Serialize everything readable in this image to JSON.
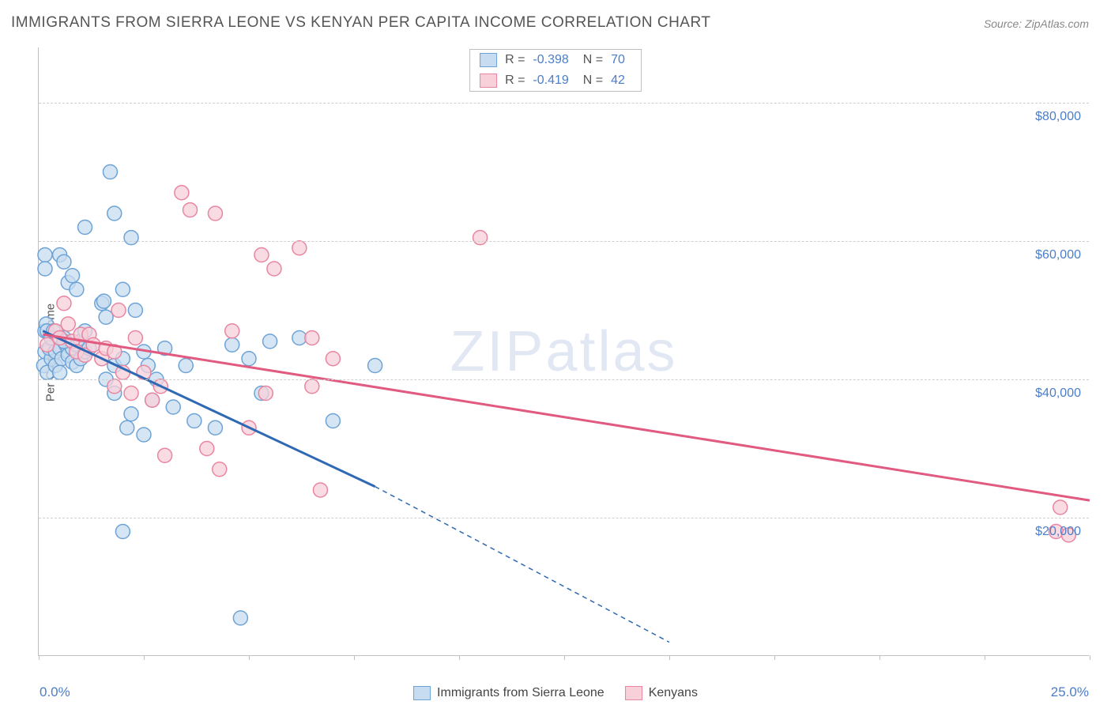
{
  "title": "IMMIGRANTS FROM SIERRA LEONE VS KENYAN PER CAPITA INCOME CORRELATION CHART",
  "source": "Source: ZipAtlas.com",
  "watermark": "ZIPatlas",
  "chart": {
    "type": "scatter",
    "xlim": [
      0,
      25
    ],
    "ylim": [
      0,
      88000
    ],
    "x_min_label": "0.0%",
    "x_max_label": "25.0%",
    "ylabel": "Per Capita Income",
    "ytick_values": [
      20000,
      40000,
      60000,
      80000
    ],
    "ytick_labels": [
      "$20,000",
      "$40,000",
      "$60,000",
      "$80,000"
    ],
    "xtick_values": [
      0,
      2.5,
      5,
      7.5,
      10,
      12.5,
      15,
      17.5,
      20,
      22.5,
      25
    ],
    "grid_color": "#cfcfcf",
    "axis_color": "#c0c0c0",
    "label_color": "#4a7ec9",
    "marker_radius": 9,
    "marker_stroke_width": 1.5,
    "trend_width": 3,
    "dash_pattern": "6,5",
    "series": [
      {
        "name": "Immigrants from Sierra Leone",
        "fill": "#c7dcf0",
        "stroke": "#6da3d6",
        "line_color": "#2f69b3",
        "R": "-0.398",
        "N": "70",
        "trend": {
          "x1": 0.1,
          "y1": 47000,
          "x2": 8.0,
          "y2": 24500,
          "ext_x2": 15.0,
          "ext_y2": 2000
        },
        "points": [
          [
            0.15,
            58000
          ],
          [
            0.15,
            56000
          ],
          [
            0.15,
            47000
          ],
          [
            0.15,
            44000
          ],
          [
            0.12,
            42000
          ],
          [
            0.18,
            48000
          ],
          [
            0.2,
            41000
          ],
          [
            0.3,
            43000
          ],
          [
            0.2,
            47000
          ],
          [
            0.25,
            44500
          ],
          [
            0.3,
            46000
          ],
          [
            0.35,
            47000
          ],
          [
            0.4,
            44000
          ],
          [
            0.4,
            42000
          ],
          [
            0.5,
            44500
          ],
          [
            0.55,
            43000
          ],
          [
            0.5,
            41000
          ],
          [
            0.6,
            46000
          ],
          [
            0.65,
            45000
          ],
          [
            0.7,
            44000
          ],
          [
            0.7,
            43500
          ],
          [
            0.8,
            44500
          ],
          [
            0.8,
            42500
          ],
          [
            0.9,
            45000
          ],
          [
            0.9,
            42000
          ],
          [
            1.0,
            43000
          ],
          [
            1.0,
            45500
          ],
          [
            1.1,
            44000
          ],
          [
            1.1,
            47000
          ],
          [
            1.2,
            44500
          ],
          [
            0.5,
            58000
          ],
          [
            0.6,
            57000
          ],
          [
            0.7,
            54000
          ],
          [
            0.8,
            55000
          ],
          [
            0.9,
            53000
          ],
          [
            1.1,
            62000
          ],
          [
            1.5,
            51000
          ],
          [
            1.55,
            51300
          ],
          [
            1.6,
            49000
          ],
          [
            1.7,
            70000
          ],
          [
            1.8,
            64000
          ],
          [
            2.0,
            53000
          ],
          [
            2.2,
            60500
          ],
          [
            2.3,
            50000
          ],
          [
            2.5,
            44000
          ],
          [
            2.6,
            42000
          ],
          [
            2.7,
            37000
          ],
          [
            2.2,
            35000
          ],
          [
            1.8,
            38000
          ],
          [
            1.6,
            40000
          ],
          [
            1.8,
            42000
          ],
          [
            2.0,
            43000
          ],
          [
            2.1,
            33000
          ],
          [
            2.5,
            32000
          ],
          [
            2.8,
            40000
          ],
          [
            3.0,
            44500
          ],
          [
            3.2,
            36000
          ],
          [
            3.5,
            42000
          ],
          [
            3.7,
            34000
          ],
          [
            4.2,
            33000
          ],
          [
            4.6,
            45000
          ],
          [
            5.0,
            43000
          ],
          [
            5.3,
            38000
          ],
          [
            5.5,
            45500
          ],
          [
            6.2,
            46000
          ],
          [
            7.0,
            34000
          ],
          [
            8.0,
            42000
          ],
          [
            2.0,
            18000
          ],
          [
            4.8,
            5500
          ],
          [
            0.6,
            45500
          ]
        ]
      },
      {
        "name": "Kenyans",
        "fill": "#f7d0da",
        "stroke": "#e985a0",
        "line_color": "#e15a80",
        "R": "-0.419",
        "N": "42",
        "trend": {
          "x1": 0.1,
          "y1": 46500,
          "x2": 25.0,
          "y2": 22500,
          "ext_x2": 25.0,
          "ext_y2": 22500
        },
        "points": [
          [
            0.2,
            45000
          ],
          [
            0.4,
            47000
          ],
          [
            0.5,
            46000
          ],
          [
            0.6,
            51000
          ],
          [
            0.7,
            48000
          ],
          [
            0.8,
            45500
          ],
          [
            0.9,
            44000
          ],
          [
            1.0,
            46500
          ],
          [
            1.1,
            43500
          ],
          [
            1.2,
            46500
          ],
          [
            1.3,
            45000
          ],
          [
            1.5,
            43000
          ],
          [
            1.6,
            44500
          ],
          [
            1.8,
            44000
          ],
          [
            1.9,
            50000
          ],
          [
            2.0,
            41000
          ],
          [
            1.8,
            39000
          ],
          [
            2.2,
            38000
          ],
          [
            2.5,
            41000
          ],
          [
            2.7,
            37000
          ],
          [
            2.9,
            39000
          ],
          [
            2.3,
            46000
          ],
          [
            3.0,
            29000
          ],
          [
            3.4,
            67000
          ],
          [
            3.6,
            64500
          ],
          [
            4.2,
            64000
          ],
          [
            4.0,
            30000
          ],
          [
            4.3,
            27000
          ],
          [
            4.6,
            47000
          ],
          [
            5.0,
            33000
          ],
          [
            5.3,
            58000
          ],
          [
            5.4,
            38000
          ],
          [
            5.6,
            56000
          ],
          [
            6.2,
            59000
          ],
          [
            6.5,
            39000
          ],
          [
            6.7,
            24000
          ],
          [
            6.5,
            46000
          ],
          [
            7.0,
            43000
          ],
          [
            10.5,
            60500
          ],
          [
            24.3,
            21500
          ],
          [
            24.2,
            18000
          ],
          [
            24.5,
            17500
          ]
        ]
      }
    ]
  }
}
